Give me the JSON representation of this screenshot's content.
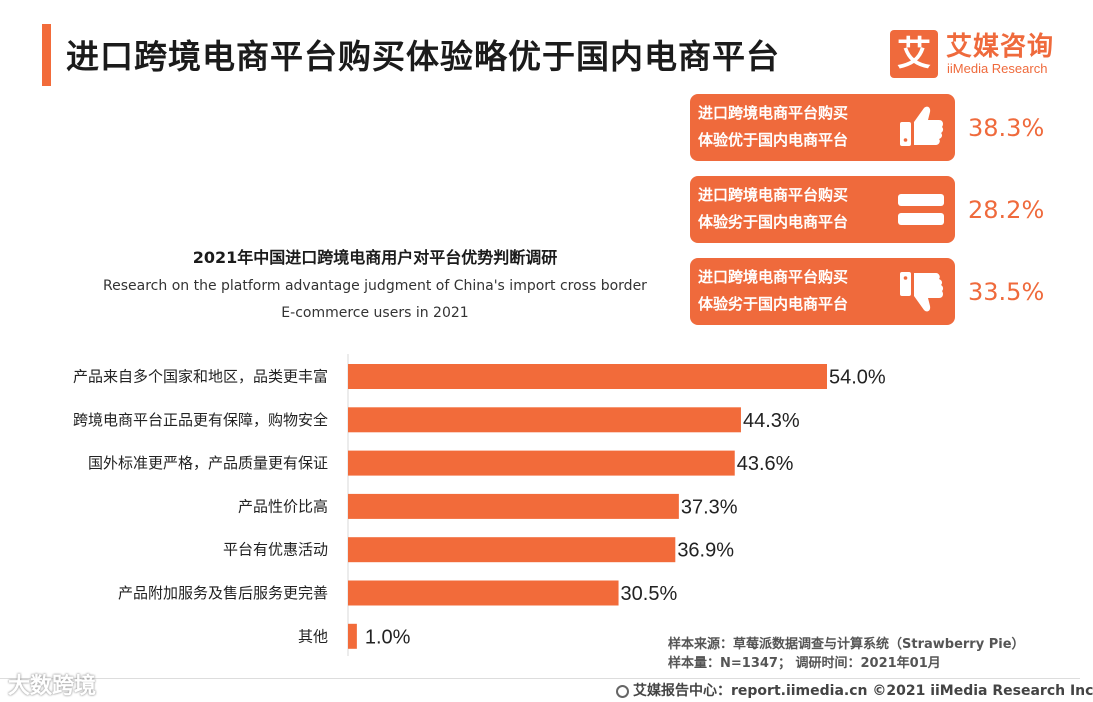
{
  "header": {
    "title": "进口跨境电商平台购买体验略优于国内电商平台",
    "logo_mark": "艾",
    "logo_cn": "艾媒咨询",
    "logo_en": "iiMedia Research"
  },
  "summary": [
    {
      "line1": "进口跨境电商平台购买",
      "line2": "体验优于国内电商平台",
      "value": "38.3%",
      "icon": "thumbs-up-icon"
    },
    {
      "line1": "进口跨境电商平台购买",
      "line2": "体验劣于国内电商平台",
      "value": "28.2%",
      "icon": "equals-icon"
    },
    {
      "line1": "进口跨境电商平台购买",
      "line2": "体验劣于国内电商平台",
      "value": "33.5%",
      "icon": "thumbs-down-icon"
    }
  ],
  "chart_data": {
    "type": "bar",
    "orientation": "horizontal",
    "title": "2021年中国进口跨境电商用户对平台优势判断调研",
    "subtitle_line1": "Research on the platform advantage judgment of China's import cross border",
    "subtitle_line2": "E-commerce users in 2021",
    "categories": [
      "产品来自多个国家和地区，品类更丰富",
      "跨境电商平台正品更有保障，购物安全",
      "国外标准更严格，产品质量更有保证",
      "产品性价比高",
      "平台有优惠活动",
      "产品附加服务及售后服务更完善",
      "其他"
    ],
    "values": [
      54.0,
      44.3,
      43.6,
      37.3,
      36.9,
      30.5,
      1.0
    ],
    "value_labels": [
      "54.0%",
      "44.3%",
      "43.6%",
      "37.3%",
      "36.9%",
      "30.5%",
      "1.0%"
    ],
    "unit": "%",
    "bar_color": "#f26b3a",
    "grid": false
  },
  "footer": {
    "source": "样本来源：草莓派数据调查与计算系统（Strawberry Pie）",
    "sample": "样本量：N=1347；  调研时间：2021年01月",
    "center": "艾媒报告中心：report.iimedia.cn   ©2021  iiMedia Research  Inc",
    "watermark": "大数跨境"
  }
}
